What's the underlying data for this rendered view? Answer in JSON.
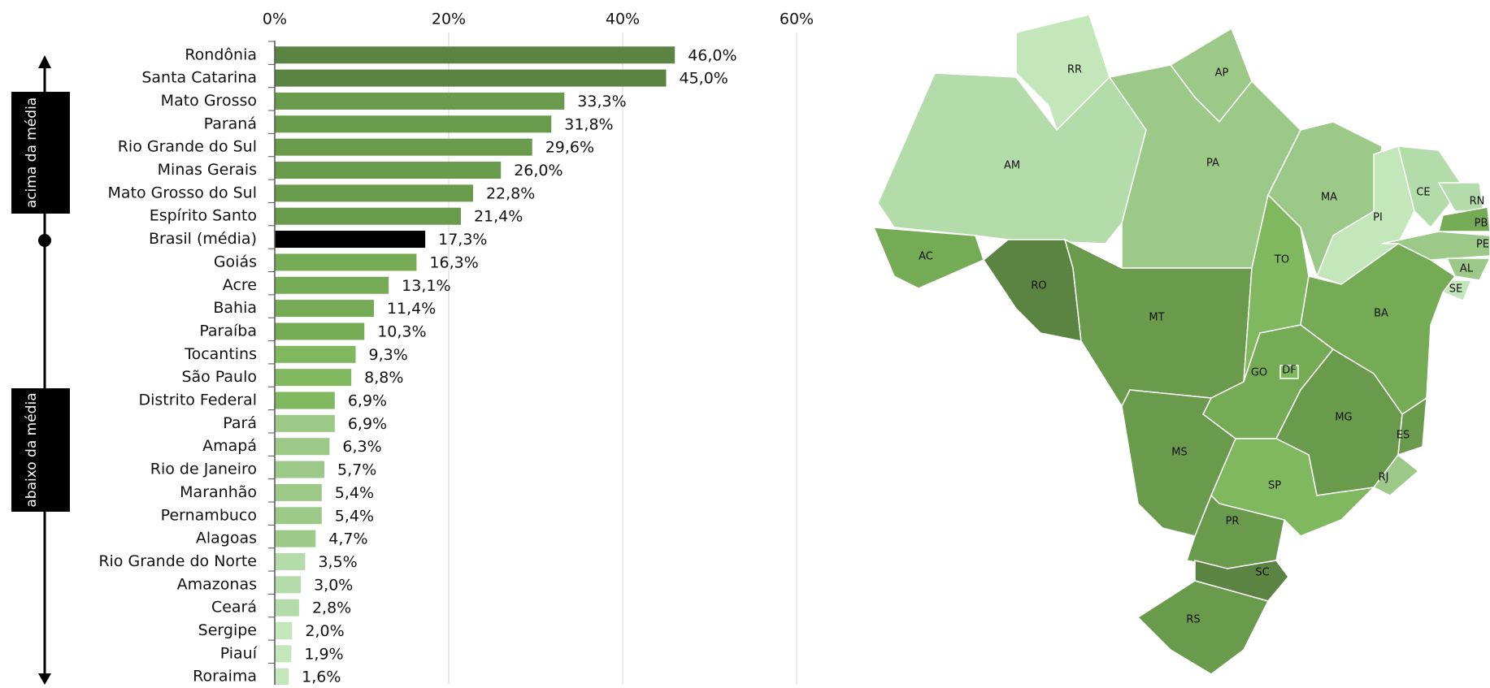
{
  "chart_data": {
    "type": "bar",
    "orientation": "horizontal",
    "categories": [
      "Rondônia",
      "Santa Catarina",
      "Mato Grosso",
      "Paraná",
      "Rio Grande do Sul",
      "Minas Gerais",
      "Mato Grosso do Sul",
      "Espírito Santo",
      "Brasil (média)",
      "Goiás",
      "Acre",
      "Bahia",
      "Paraíba",
      "Tocantins",
      "São Paulo",
      "Distrito Federal",
      "Pará",
      "Amapá",
      "Rio de Janeiro",
      "Maranhão",
      "Pernambuco",
      "Alagoas",
      "Rio Grande do Norte",
      "Amazonas",
      "Ceará",
      "Sergipe",
      "Piauí",
      "Roraima"
    ],
    "values": [
      46.0,
      45.0,
      33.3,
      31.8,
      29.6,
      26.0,
      22.8,
      21.4,
      17.3,
      16.3,
      13.1,
      11.4,
      10.3,
      9.3,
      8.8,
      6.9,
      6.9,
      6.3,
      5.7,
      5.4,
      5.4,
      4.7,
      3.5,
      3.0,
      2.8,
      2.0,
      1.9,
      1.6
    ],
    "value_labels": [
      "46,0%",
      "45,0%",
      "33,3%",
      "31,8%",
      "29,6%",
      "26,0%",
      "22,8%",
      "21,4%",
      "17,3%",
      "16,3%",
      "13,1%",
      "11,4%",
      "10,3%",
      "9,3%",
      "8,8%",
      "6,9%",
      "6,9%",
      "6,3%",
      "5,7%",
      "5,4%",
      "5,4%",
      "4,7%",
      "3,5%",
      "3,0%",
      "2,8%",
      "2,0%",
      "1,9%",
      "1,6%"
    ],
    "colors": [
      "#5b8442",
      "#5b8442",
      "#6a9a4c",
      "#6a9a4c",
      "#6a9a4c",
      "#6a9a4c",
      "#6a9a4c",
      "#6a9a4c",
      "#000000",
      "#76ab55",
      "#76ab55",
      "#76ab55",
      "#76ab55",
      "#80b860",
      "#80b860",
      "#80b860",
      "#9cc987",
      "#9cc987",
      "#9cc987",
      "#9cc987",
      "#9cc987",
      "#9cc987",
      "#b4dcaa",
      "#b4dcaa",
      "#b4dcaa",
      "#c4e6bb",
      "#c4e6bb",
      "#c4e6bb"
    ],
    "xlim": [
      0,
      60
    ],
    "xticks": [
      {
        "value": 0,
        "label": "0%"
      },
      {
        "value": 20,
        "label": "20%"
      },
      {
        "value": 40,
        "label": "40%"
      },
      {
        "value": 60,
        "label": "60%"
      }
    ],
    "grid": true,
    "annotations": [
      "acima da média",
      "abaixo da média"
    ]
  },
  "map": {
    "labels": [
      "RR",
      "AP",
      "AM",
      "PA",
      "MA",
      "PI",
      "CE",
      "RN",
      "PB",
      "PE",
      "AL",
      "SE",
      "AC",
      "RO",
      "MT",
      "TO",
      "BA",
      "GO",
      "DF",
      "MG",
      "ES",
      "RJ",
      "MS",
      "SP",
      "PR",
      "SC",
      "RS"
    ]
  }
}
